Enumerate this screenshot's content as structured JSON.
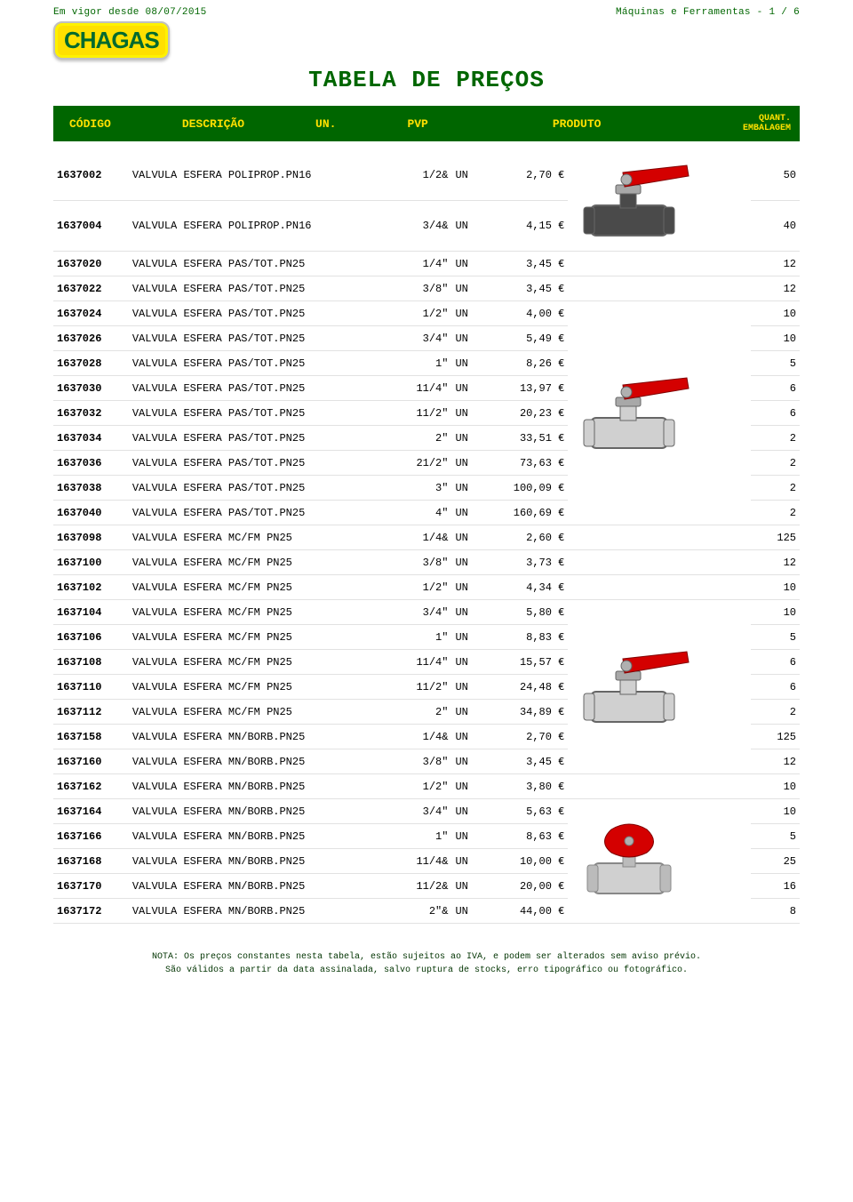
{
  "header": {
    "effective": "Em vigor desde 08/07/2015",
    "section": "Máquinas e Ferramentas - 1 / 6",
    "logo_text": "CHAGAS",
    "title": "TABELA DE PREÇOS",
    "col_code": "CÓDIGO",
    "col_desc": "DESCRIÇÃO",
    "col_un": "UN.",
    "col_pvp": "PVP",
    "col_prod": "PRODUTO",
    "col_qty1": "QUANT.",
    "col_qty2": "EMBALAGEM"
  },
  "rows": [
    {
      "code": "1637002",
      "desc": "VALVULA ESFERA POLIPROP.PN16",
      "size": "1/2&",
      "un": "UN",
      "pvp": "2,70 €",
      "qty": "50"
    },
    {
      "code": "1637004",
      "desc": "VALVULA ESFERA POLIPROP.PN16",
      "size": "3/4&",
      "un": "UN",
      "pvp": "4,15 €",
      "qty": "40"
    },
    {
      "code": "1637020",
      "desc": "VALVULA ESFERA PAS/TOT.PN25",
      "size": "1/4\"",
      "un": "UN",
      "pvp": "3,45 €",
      "qty": "12"
    },
    {
      "code": "1637022",
      "desc": "VALVULA ESFERA PAS/TOT.PN25",
      "size": "3/8\"",
      "un": "UN",
      "pvp": "3,45 €",
      "qty": "12"
    },
    {
      "code": "1637024",
      "desc": "VALVULA ESFERA PAS/TOT.PN25",
      "size": "1/2\"",
      "un": "UN",
      "pvp": "4,00 €",
      "qty": "10"
    },
    {
      "code": "1637026",
      "desc": "VALVULA ESFERA PAS/TOT.PN25",
      "size": "3/4\"",
      "un": "UN",
      "pvp": "5,49 €",
      "qty": "10"
    },
    {
      "code": "1637028",
      "desc": "VALVULA ESFERA PAS/TOT.PN25",
      "size": "1\"",
      "un": "UN",
      "pvp": "8,26 €",
      "qty": "5"
    },
    {
      "code": "1637030",
      "desc": "VALVULA ESFERA PAS/TOT.PN25",
      "size": "11/4\"",
      "un": "UN",
      "pvp": "13,97 €",
      "qty": "6"
    },
    {
      "code": "1637032",
      "desc": "VALVULA ESFERA PAS/TOT.PN25",
      "size": "11/2\"",
      "un": "UN",
      "pvp": "20,23 €",
      "qty": "6"
    },
    {
      "code": "1637034",
      "desc": "VALVULA ESFERA PAS/TOT.PN25",
      "size": "2\"",
      "un": "UN",
      "pvp": "33,51 €",
      "qty": "2"
    },
    {
      "code": "1637036",
      "desc": "VALVULA ESFERA PAS/TOT.PN25",
      "size": "21/2\"",
      "un": "UN",
      "pvp": "73,63 €",
      "qty": "2"
    },
    {
      "code": "1637038",
      "desc": "VALVULA ESFERA PAS/TOT.PN25",
      "size": "3\"",
      "un": "UN",
      "pvp": "100,09 €",
      "qty": "2"
    },
    {
      "code": "1637040",
      "desc": "VALVULA ESFERA PAS/TOT.PN25",
      "size": "4\"",
      "un": "UN",
      "pvp": "160,69 €",
      "qty": "2"
    },
    {
      "code": "1637098",
      "desc": "VALVULA ESFERA MC/FM  PN25",
      "size": "1/4&",
      "un": "UN",
      "pvp": "2,60 €",
      "qty": "125"
    },
    {
      "code": "1637100",
      "desc": "VALVULA ESFERA MC/FM  PN25",
      "size": "3/8\"",
      "un": "UN",
      "pvp": "3,73 €",
      "qty": "12"
    },
    {
      "code": "1637102",
      "desc": "VALVULA ESFERA MC/FM  PN25",
      "size": "1/2\"",
      "un": "UN",
      "pvp": "4,34 €",
      "qty": "10"
    },
    {
      "code": "1637104",
      "desc": "VALVULA ESFERA MC/FM  PN25",
      "size": "3/4\"",
      "un": "UN",
      "pvp": "5,80 €",
      "qty": "10"
    },
    {
      "code": "1637106",
      "desc": "VALVULA ESFERA MC/FM  PN25",
      "size": "1\"",
      "un": "UN",
      "pvp": "8,83 €",
      "qty": "5"
    },
    {
      "code": "1637108",
      "desc": "VALVULA ESFERA MC/FM  PN25",
      "size": "11/4\"",
      "un": "UN",
      "pvp": "15,57 €",
      "qty": "6"
    },
    {
      "code": "1637110",
      "desc": "VALVULA ESFERA MC/FM  PN25",
      "size": "11/2\"",
      "un": "UN",
      "pvp": "24,48 €",
      "qty": "6"
    },
    {
      "code": "1637112",
      "desc": "VALVULA ESFERA MC/FM  PN25",
      "size": "2\"",
      "un": "UN",
      "pvp": "34,89 €",
      "qty": "2"
    },
    {
      "code": "1637158",
      "desc": "VALVULA ESFERA MN/BORB.PN25",
      "size": "1/4&",
      "un": "UN",
      "pvp": "2,70 €",
      "qty": "125"
    },
    {
      "code": "1637160",
      "desc": "VALVULA ESFERA MN/BORB.PN25",
      "size": "3/8\"",
      "un": "UN",
      "pvp": "3,45 €",
      "qty": "12"
    },
    {
      "code": "1637162",
      "desc": "VALVULA ESFERA MN/BORB.PN25",
      "size": "1/2\"",
      "un": "UN",
      "pvp": "3,80 €",
      "qty": "10"
    },
    {
      "code": "1637164",
      "desc": "VALVULA ESFERA MN/BORB.PN25",
      "size": "3/4\"",
      "un": "UN",
      "pvp": "5,63 €",
      "qty": "10"
    },
    {
      "code": "1637166",
      "desc": "VALVULA ESFERA MN/BORB.PN25",
      "size": "1\"",
      "un": "UN",
      "pvp": "8,63 €",
      "qty": "5"
    },
    {
      "code": "1637168",
      "desc": "VALVULA ESFERA MN/BORB.PN25",
      "size": "11/4&",
      "un": "UN",
      "pvp": "10,00 €",
      "qty": "25"
    },
    {
      "code": "1637170",
      "desc": "VALVULA ESFERA MN/BORB.PN25",
      "size": "11/2&",
      "un": "UN",
      "pvp": "20,00 €",
      "qty": "16"
    },
    {
      "code": "1637172",
      "desc": "VALVULA ESFERA MN/BORB.PN25",
      "size": "2\"&",
      "un": "UN",
      "pvp": "44,00 €",
      "qty": "8"
    }
  ],
  "product_images": [
    {
      "row_span_start": 0,
      "type": "lever",
      "body_color": "#4a4a4a",
      "handle_color": "#d40000"
    },
    {
      "row_span_start": 4,
      "type": "lever",
      "body_color": "#d0d0d0",
      "handle_color": "#d40000"
    },
    {
      "row_span_start": 16,
      "type": "lever",
      "body_color": "#d0d0d0",
      "handle_color": "#d40000"
    },
    {
      "row_span_start": 24,
      "type": "butterfly",
      "body_color": "#d0d0d0",
      "handle_color": "#d40000"
    }
  ],
  "footer": {
    "line1": "NOTA: Os preços constantes nesta tabela, estão sujeitos ao IVA, e podem ser alterados sem aviso prévio.",
    "line2": "São válidos a partir da data assinalada, salvo ruptura de stocks, erro tipográfico ou fotográfico."
  },
  "colors": {
    "header_bg": "#006600",
    "header_fg": "#ffe000",
    "logo_bg": "#ffe000",
    "logo_fg": "#006a2f",
    "text_green": "#006600",
    "row_border": "#e2e2e2"
  }
}
